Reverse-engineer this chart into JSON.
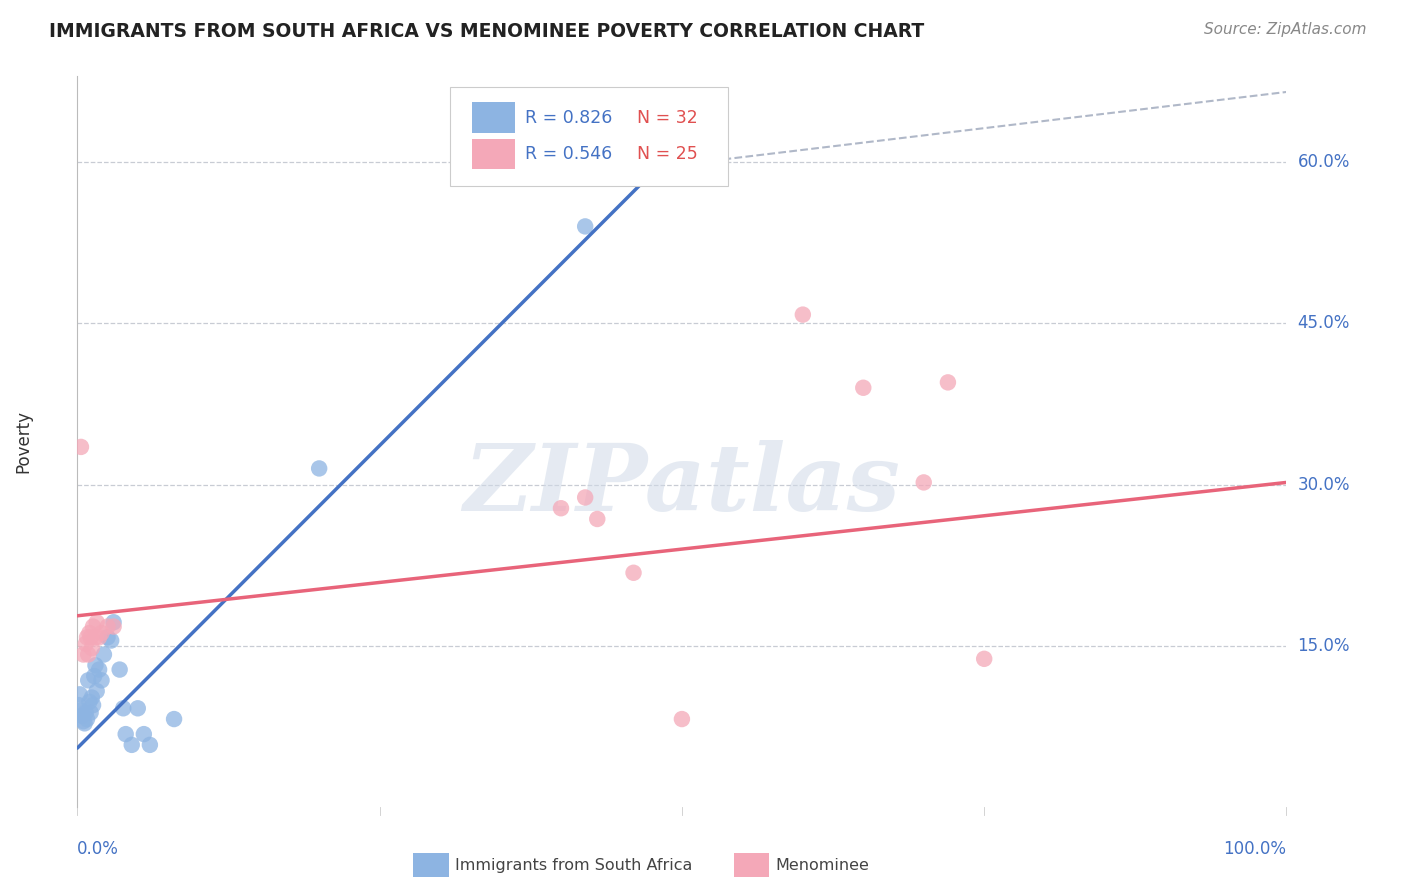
{
  "title": "IMMIGRANTS FROM SOUTH AFRICA VS MENOMINEE POVERTY CORRELATION CHART",
  "source": "Source: ZipAtlas.com",
  "ylabel": "Poverty",
  "y_ticks": [
    0.15,
    0.3,
    0.45,
    0.6
  ],
  "y_tick_labels": [
    "15.0%",
    "30.0%",
    "45.0%",
    "60.0%"
  ],
  "xlim": [
    0.0,
    1.0
  ],
  "ylim": [
    0.0,
    0.68
  ],
  "legend_labels_bottom": [
    "Immigrants from South Africa",
    "Menominee"
  ],
  "watermark": "ZIPatlas",
  "blue_scatter": [
    [
      0.001,
      0.095
    ],
    [
      0.002,
      0.105
    ],
    [
      0.003,
      0.09
    ],
    [
      0.004,
      0.085
    ],
    [
      0.005,
      0.08
    ],
    [
      0.006,
      0.078
    ],
    [
      0.007,
      0.088
    ],
    [
      0.008,
      0.082
    ],
    [
      0.009,
      0.118
    ],
    [
      0.01,
      0.098
    ],
    [
      0.011,
      0.088
    ],
    [
      0.012,
      0.102
    ],
    [
      0.013,
      0.095
    ],
    [
      0.014,
      0.122
    ],
    [
      0.015,
      0.132
    ],
    [
      0.016,
      0.108
    ],
    [
      0.018,
      0.128
    ],
    [
      0.02,
      0.118
    ],
    [
      0.022,
      0.142
    ],
    [
      0.025,
      0.158
    ],
    [
      0.028,
      0.155
    ],
    [
      0.03,
      0.172
    ],
    [
      0.035,
      0.128
    ],
    [
      0.038,
      0.092
    ],
    [
      0.04,
      0.068
    ],
    [
      0.045,
      0.058
    ],
    [
      0.05,
      0.092
    ],
    [
      0.055,
      0.068
    ],
    [
      0.06,
      0.058
    ],
    [
      0.08,
      0.082
    ],
    [
      0.2,
      0.315
    ],
    [
      0.42,
      0.54
    ]
  ],
  "pink_scatter": [
    [
      0.003,
      0.335
    ],
    [
      0.005,
      0.142
    ],
    [
      0.007,
      0.152
    ],
    [
      0.008,
      0.158
    ],
    [
      0.009,
      0.142
    ],
    [
      0.01,
      0.162
    ],
    [
      0.011,
      0.158
    ],
    [
      0.012,
      0.148
    ],
    [
      0.013,
      0.168
    ],
    [
      0.015,
      0.158
    ],
    [
      0.016,
      0.172
    ],
    [
      0.018,
      0.158
    ],
    [
      0.02,
      0.162
    ],
    [
      0.025,
      0.168
    ],
    [
      0.03,
      0.168
    ],
    [
      0.4,
      0.278
    ],
    [
      0.42,
      0.288
    ],
    [
      0.43,
      0.268
    ],
    [
      0.46,
      0.218
    ],
    [
      0.5,
      0.082
    ],
    [
      0.6,
      0.458
    ],
    [
      0.65,
      0.39
    ],
    [
      0.7,
      0.302
    ],
    [
      0.72,
      0.395
    ],
    [
      0.75,
      0.138
    ]
  ],
  "blue_line_x": [
    0.0,
    0.48
  ],
  "blue_line_y": [
    0.055,
    0.595
  ],
  "pink_line_x": [
    0.0,
    1.0
  ],
  "pink_line_y": [
    0.178,
    0.302
  ],
  "dashed_line_x": [
    0.48,
    1.0
  ],
  "dashed_line_y": [
    0.595,
    0.665
  ],
  "blue_color": "#4472c4",
  "pink_color": "#e8647a",
  "blue_scatter_color": "#8db4e2",
  "pink_scatter_color": "#f4a8b8",
  "dashed_color": "#b0b8c8",
  "background_color": "#ffffff",
  "grid_color": "#c8ccd4",
  "legend_R1": "R = 0.826",
  "legend_N1": "N = 32",
  "legend_R2": "R = 0.546",
  "legend_N2": "N = 25",
  "R_color": "#4472c4",
  "N_color": "#e05050"
}
